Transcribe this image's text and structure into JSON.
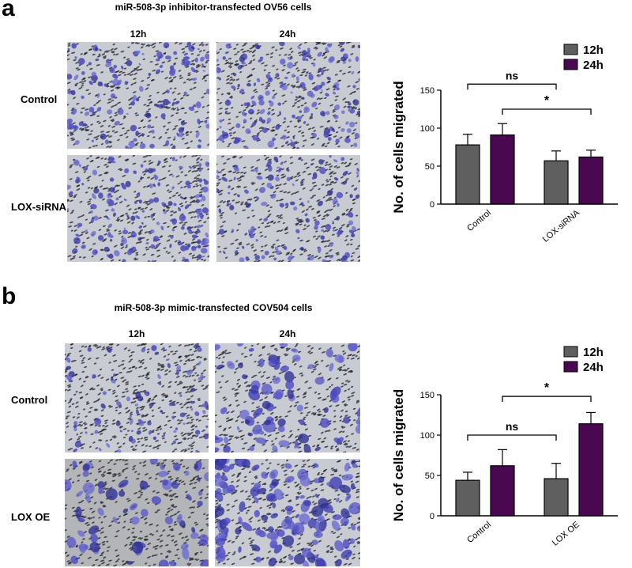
{
  "panel_a": {
    "letter": "a",
    "title": "miR-508-3p inhibitor-transfected OV56 cells",
    "col_labels": [
      "12h",
      "24h"
    ],
    "row_labels": [
      "Control",
      "LOX-siRNA"
    ]
  },
  "panel_b": {
    "letter": "b",
    "title": "miR-508-3p mimic-transfected COV504 cells",
    "col_labels": [
      "12h",
      "24h"
    ],
    "row_labels": [
      "Control",
      "LOX OE"
    ]
  },
  "colors": {
    "series_12h": "#5f5f5f",
    "series_24h": "#4a0850",
    "stain": "#3a3aa8",
    "background": "#c9cbd3"
  },
  "chart_data": [
    {
      "type": "bar",
      "ylabel": "No. of cells migrated",
      "xlabel": "",
      "ylim": [
        0,
        150
      ],
      "yticks": [
        0,
        50,
        100,
        150
      ],
      "categories": [
        "Control",
        "LOX-siRNA"
      ],
      "legend_position": "top-right",
      "grid": false,
      "series": [
        {
          "name": "12h",
          "color": "#5f5f5f",
          "values": [
            78,
            57
          ],
          "errors": [
            14,
            13
          ]
        },
        {
          "name": "24h",
          "color": "#4a0850",
          "values": [
            91,
            62
          ],
          "errors": [
            15,
            9
          ]
        }
      ],
      "annotations": [
        {
          "text": "ns",
          "from": [
            0,
            0
          ],
          "to": [
            1,
            0
          ],
          "level": 158
        },
        {
          "text": "*",
          "from": [
            0,
            1
          ],
          "to": [
            1,
            1
          ],
          "level": 125
        }
      ]
    },
    {
      "type": "bar",
      "ylabel": "No. of cells migrated",
      "xlabel": "",
      "ylim": [
        0,
        150
      ],
      "yticks": [
        0,
        50,
        100,
        150
      ],
      "categories": [
        "Control",
        "LOX OE"
      ],
      "legend_position": "top-right",
      "grid": false,
      "series": [
        {
          "name": "12h",
          "color": "#5f5f5f",
          "values": [
            44,
            46
          ],
          "errors": [
            10,
            19
          ]
        },
        {
          "name": "24h",
          "color": "#4a0850",
          "values": [
            62,
            114
          ],
          "errors": [
            20,
            14
          ]
        }
      ],
      "annotations": [
        {
          "text": "ns",
          "from": [
            0,
            0
          ],
          "to": [
            1,
            0
          ],
          "level": 100
        },
        {
          "text": "*",
          "from": [
            0,
            1
          ],
          "to": [
            1,
            1
          ],
          "level": 148
        }
      ]
    }
  ]
}
